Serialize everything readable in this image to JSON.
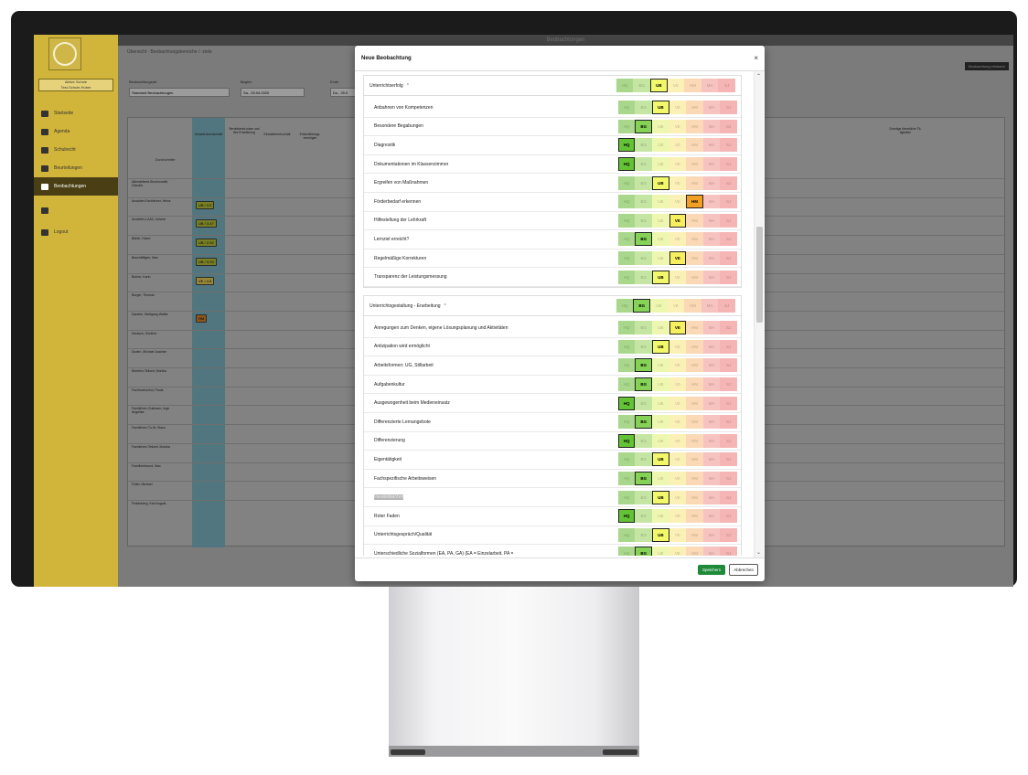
{
  "app": {
    "topbar_title": "Beobachtungen",
    "breadcrumb": "Übersicht · Beobachtungsbereiche / -ziele",
    "school_label": "Aktive Schule",
    "school_name": "Test-Schule-Huber",
    "capture_button": "Beobachtung erfassen",
    "filters": {
      "type_label": "Beobachtungsart",
      "type_value": "Standard Beobachtungen",
      "begin_label": "Beginn",
      "begin_value": "Sa., 25.04.2020",
      "end_label": "Ende",
      "end_value": "Do., 25.0"
    },
    "nav": [
      {
        "label": "Startseite",
        "icon": "home-icon"
      },
      {
        "label": "Agenda",
        "icon": "calendar-icon"
      },
      {
        "label": "Schulrecht",
        "icon": "gavel-icon"
      },
      {
        "label": "Beurteilungen",
        "icon": "grade-icon"
      },
      {
        "label": "Beobachtungen",
        "icon": "binoculars-icon"
      },
      {
        "label": "",
        "icon": "user-icon"
      },
      {
        "label": "Logout",
        "icon": "logout-icon"
      }
    ],
    "table": {
      "avg_label": "Durchschnitte",
      "col_overall": "Gesamt-durchschnitt",
      "col_headers": [
        "Berufskennt-nisse und ihre Erweiterung",
        "Einsatzbereit-schaft",
        "Entscheidungs-vermögen",
        "Sonstige dienstliche Tä-tigkeiten"
      ],
      "students": [
        {
          "name": "Altersteilzeit-Stockmodell, Claudia",
          "avg": ""
        },
        {
          "name": "Anwärter-Fachlehrer, Heinz",
          "avg": "UB / 3.5"
        },
        {
          "name": "Anwärter-LAA0, Juliana",
          "avg": "UB / 3.47"
        },
        {
          "name": "Bärtel, Huber",
          "avg": "UB / 2.92"
        },
        {
          "name": "Beschäftigter, Max",
          "avg": "UB / 3.33"
        },
        {
          "name": "Bohrer, Karin",
          "avg": "VE / 4.5"
        },
        {
          "name": "Burger, Thomas",
          "avg": ""
        },
        {
          "name": "Daneke, Wolfgang Walter",
          "avg": "HM"
        },
        {
          "name": "Deutsch, Günther",
          "avg": ""
        },
        {
          "name": "Duden, Michael Joachim",
          "avg": ""
        },
        {
          "name": "Eberlein-Teilzeit, Monika",
          "avg": ""
        },
        {
          "name": "Fachhochschul, Paula",
          "avg": ""
        },
        {
          "name": "Fachlehrer-Gutmann, Inge Angelika",
          "avg": ""
        },
        {
          "name": "Fachlehrer-Tu-W, Klaus",
          "avg": ""
        },
        {
          "name": "Fachlehrer-Teilzeit, Monika",
          "avg": ""
        },
        {
          "name": "Familienfreund, Max",
          "avg": ""
        },
        {
          "name": "Feller, Michael",
          "avg": ""
        },
        {
          "name": "Finkenberg, Karl August",
          "avg": ""
        }
      ]
    }
  },
  "modal": {
    "title": "Neue Beobachtung",
    "close": "×",
    "scale": [
      "HQ",
      "BG",
      "UB",
      "VE",
      "HM",
      "MA",
      "SJ"
    ],
    "sections": [
      {
        "title": "Unterrichtserfolg",
        "selected": "UB",
        "rows": [
          {
            "label": "Anbahnen von Kompetenzen",
            "selected": "UB"
          },
          {
            "label": "Besondere Begabungen",
            "selected": "BG"
          },
          {
            "label": "Diagnostik",
            "selected": "HQ"
          },
          {
            "label": "Dokumentationen im Klassenzimmer",
            "selected": "HQ"
          },
          {
            "label": "Ergreifen von Maßnahmen",
            "selected": "UB"
          },
          {
            "label": "Förderbedarf erkennen",
            "selected": "HM"
          },
          {
            "label": "Hilfestellung der Lehrkraft",
            "selected": "VE"
          },
          {
            "label": "Lernziel erreicht?",
            "selected": "BG"
          },
          {
            "label": "Regelmäßige Korrekturen",
            "selected": "VE"
          },
          {
            "label": "Transparenz der Leistungsmessung",
            "selected": "UB"
          }
        ]
      },
      {
        "title": "Unterrichtsgestaltung - Erarbeitung",
        "selected": "BG",
        "rows": [
          {
            "label": "Anregungen zum Denken, eigene Lösungsplanung und Aktivitäten",
            "selected": "VE"
          },
          {
            "label": "Antizipation wird ermöglicht",
            "selected": "UB"
          },
          {
            "label": "Arbeitsformen: UG, Stillarbeit",
            "selected": "BG"
          },
          {
            "label": "Aufgabenkultur",
            "selected": "BG"
          },
          {
            "label": "Ausgewogenheit beim Medieneinsatz",
            "selected": "HQ"
          },
          {
            "label": "Differenzierte Lernangebote",
            "selected": "BG"
          },
          {
            "label": "Differenzierung",
            "selected": "HQ"
          },
          {
            "label": "Eigentätigkeit",
            "selected": "UB"
          },
          {
            "label": "Fachspezifische Arbeitsweisen",
            "selected": "BG"
          },
          {
            "label": "Flexibilität/Zeit",
            "selected": "UB",
            "highlight": true
          },
          {
            "label": "Roter Faden",
            "selected": "HQ"
          },
          {
            "label": "Unterrichtsgespräch/Qualität",
            "selected": "UB"
          },
          {
            "label": "Unterschiedliche Sozialformen (EA, PA, GA) (EA = Einzelarbeit, PA =",
            "selected": "BG"
          }
        ]
      }
    ],
    "save": "Speichern",
    "cancel": "Abbrechen"
  }
}
